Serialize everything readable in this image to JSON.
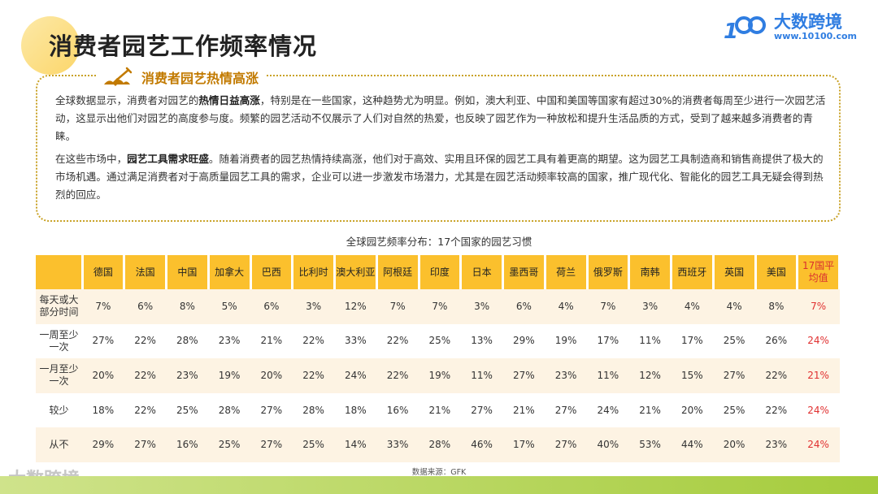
{
  "page": {
    "title": "消费者园艺工作频率情况"
  },
  "brand": {
    "logo_digits": "100",
    "name": "大数跨境",
    "url": "www.10100.com"
  },
  "section": {
    "title": "消费者园艺热情高涨",
    "para1": {
      "a": "全球数据显示，消费者对园艺的",
      "b": "热情日益高涨",
      "c": "，特别是在一些国家，这种趋势尤为明显。例如，澳大利亚、中国和美国等国家有超过30%的消费者每周至少进行一次园艺活动，这显示出他们对园艺的高度参与度。频繁的园艺活动不仅展示了人们对自然的热爱，也反映了园艺作为一种放松和提升生活品质的方式，受到了越来越多消费者的青睐。"
    },
    "para2": {
      "a": "在这些市场中，",
      "b": "园艺工具需求旺盛",
      "c": "。随着消费者的园艺热情持续高涨，他们对于高效、实用且环保的园艺工具有着更高的期望。这为园艺工具制造商和销售商提供了极大的市场机遇。通过满足消费者对于高质量园艺工具的需求，企业可以进一步激发市场潜力，尤其是在园艺活动频率较高的国家，推广现代化、智能化的园艺工具无疑会得到热烈的回应。"
    }
  },
  "table": {
    "title": "全球园艺频率分布：17个国家的园艺习惯",
    "columns": [
      "德国",
      "法国",
      "中国",
      "加拿大",
      "巴西",
      "比利时",
      "澳大利亚",
      "阿根廷",
      "印度",
      "日本",
      "墨西哥",
      "荷兰",
      "俄罗斯",
      "南韩",
      "西班牙",
      "英国",
      "美国",
      "17国平均值"
    ],
    "rows": [
      {
        "label": "每天或大部分时间",
        "values": [
          "7%",
          "6%",
          "8%",
          "5%",
          "6%",
          "3%",
          "12%",
          "7%",
          "7%",
          "3%",
          "6%",
          "4%",
          "7%",
          "3%",
          "4%",
          "4%",
          "8%",
          "7%"
        ]
      },
      {
        "label": "一周至少一次",
        "values": [
          "27%",
          "22%",
          "28%",
          "23%",
          "21%",
          "22%",
          "33%",
          "22%",
          "25%",
          "13%",
          "29%",
          "19%",
          "17%",
          "11%",
          "17%",
          "25%",
          "26%",
          "24%"
        ]
      },
      {
        "label": "一月至少一次",
        "values": [
          "20%",
          "22%",
          "23%",
          "19%",
          "20%",
          "22%",
          "24%",
          "22%",
          "19%",
          "11%",
          "27%",
          "23%",
          "11%",
          "12%",
          "15%",
          "27%",
          "22%",
          "21%"
        ]
      },
      {
        "label": "较少",
        "values": [
          "18%",
          "22%",
          "25%",
          "28%",
          "27%",
          "28%",
          "18%",
          "16%",
          "21%",
          "27%",
          "21%",
          "27%",
          "24%",
          "21%",
          "20%",
          "25%",
          "22%",
          "24%"
        ]
      },
      {
        "label": "从不",
        "values": [
          "29%",
          "27%",
          "16%",
          "25%",
          "27%",
          "25%",
          "14%",
          "33%",
          "28%",
          "46%",
          "17%",
          "27%",
          "40%",
          "53%",
          "44%",
          "20%",
          "23%",
          "24%"
        ]
      }
    ],
    "source": "数据来源：GFK"
  },
  "watermark": "大数跨境",
  "colors": {
    "header_bg": "#fbc02d",
    "row_alt_bg": "#fdf3e3",
    "average_text": "#e03030",
    "brand_blue": "#2f7de1",
    "section_title": "#c27a00",
    "bottom_bar": "#a5cc3c"
  }
}
